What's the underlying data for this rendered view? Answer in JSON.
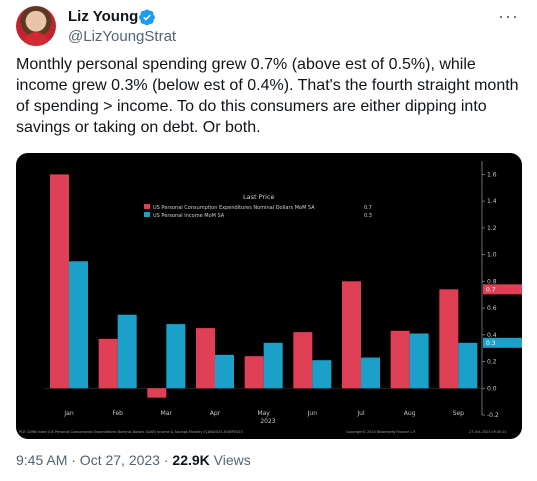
{
  "author": {
    "name": "Liz Young",
    "handle": "@LizYoungStrat",
    "verified_color": "#1d9bf0"
  },
  "tweet": {
    "text": "Monthly personal spending grew 0.7% (above est of 0.5%), while income grew 0.3% (below est of 0.4%). That's the fourth straight month of spending > income. To do this consumers are either dipping into savings or taking on debt. Or both."
  },
  "chart_data": {
    "type": "bar",
    "categories": [
      "Jan",
      "Feb",
      "Mar",
      "Apr",
      "May",
      "Jun",
      "Jul",
      "Aug",
      "Sep"
    ],
    "series": [
      {
        "name": "US Personal Consumption Expenditures Nominal Dollars MoM SA",
        "last": "0.7",
        "color": "#e04055",
        "values": [
          1.6,
          0.37,
          -0.07,
          0.45,
          0.24,
          0.42,
          0.8,
          0.43,
          0.74
        ]
      },
      {
        "name": "US Personal Income MoM SA",
        "last": "0.3",
        "color": "#1aa0c9",
        "values": [
          0.95,
          0.55,
          0.48,
          0.25,
          0.34,
          0.21,
          0.23,
          0.41,
          0.34
        ]
      }
    ],
    "ylim": [
      -0.2,
      1.7
    ],
    "yticks": [
      -0.2,
      0.0,
      0.2,
      0.4,
      0.6,
      0.8,
      1.0,
      1.2,
      1.4,
      1.6
    ],
    "ytick_labels": [
      "-0.2",
      "0.0",
      "0.2",
      "0.4",
      "0.6",
      "0.8",
      "1.0",
      "1.2",
      "1.4",
      "1.6"
    ],
    "legend_title": "Last Price",
    "legend_placement": "top-center",
    "xlabel": "2023",
    "source_left": "PCE CUM8 Index (US Personal Consumption Expenditures Nominal Dollars SAAR) Income & Savings  Monthly 01JAN2023-30SEP2023",
    "source_mid": "Copyright© 2023 Bloomberg Finance L.P.",
    "source_right": "27-Oct-2023 09:35:21"
  },
  "footer": {
    "time": "9:45 AM · Oct 27, 2023 · ",
    "views_count": "22.9K",
    "views_label": " Views"
  }
}
